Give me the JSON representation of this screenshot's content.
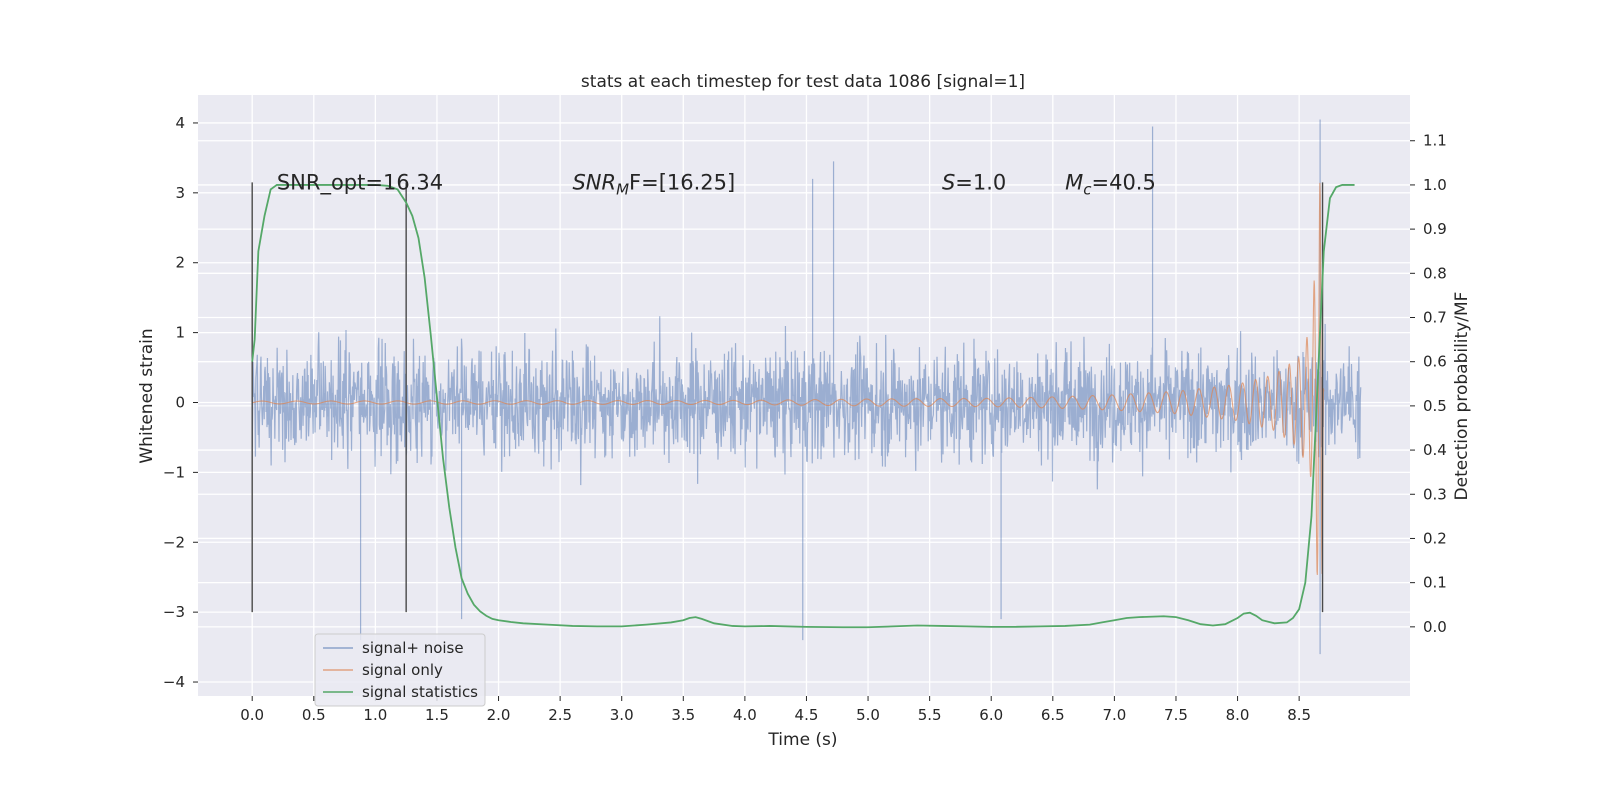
{
  "chart_data": {
    "type": "line",
    "title": "stats at each timestep for test data 1086 [signal=1]",
    "xlabel": "Time (s)",
    "ylabel": "Whitened strain",
    "y2label": "Detection probability/MF",
    "xlim": [
      -0.44,
      9.4
    ],
    "ylim": [
      -4.2,
      4.4
    ],
    "y2lim": [
      -0.1565,
      1.2035
    ],
    "grid": true,
    "x_ticks": [
      0.0,
      0.5,
      1.0,
      1.5,
      2.0,
      2.5,
      3.0,
      3.5,
      4.0,
      4.5,
      5.0,
      5.5,
      6.0,
      6.5,
      7.0,
      7.5,
      8.0,
      8.5
    ],
    "x_tick_labels": [
      "0.0",
      "0.5",
      "1.0",
      "1.5",
      "2.0",
      "2.5",
      "3.0",
      "3.5",
      "4.0",
      "4.5",
      "5.0",
      "5.5",
      "6.0",
      "6.5",
      "7.0",
      "7.5",
      "8.0",
      "8.5"
    ],
    "y_ticks": [
      4,
      3,
      2,
      1,
      0,
      -1,
      -2,
      -3,
      -4
    ],
    "y_tick_labels": [
      "4",
      "3",
      "2",
      "1",
      "0",
      "−1",
      "−2",
      "−3",
      "−4"
    ],
    "y2_ticks": [
      1.1,
      1.0,
      0.9,
      0.8,
      0.7,
      0.6,
      0.5,
      0.4,
      0.3,
      0.2,
      0.1,
      0.0
    ],
    "y2_tick_labels": [
      "1.1",
      "1.0",
      "0.9",
      "0.8",
      "0.7",
      "0.6",
      "0.5",
      "0.4",
      "0.3",
      "0.2",
      "0.1",
      "0.0"
    ],
    "legend_location": "bottom-left",
    "series": [
      {
        "name": "signal+ noise",
        "axis": "left",
        "color": "#4c72b0",
        "kind": "dense noise trace, roughly ±1.3 core with peaks to about ±3.5",
        "x_range": [
          0.0,
          9.0
        ],
        "peaks": [
          {
            "x": 0.88,
            "y": -3.4
          },
          {
            "x": 1.7,
            "y": -3.1
          },
          {
            "x": 4.55,
            "y": 3.2
          },
          {
            "x": 4.47,
            "y": -3.4
          },
          {
            "x": 4.72,
            "y": 3.45
          },
          {
            "x": 6.08,
            "y": -3.1
          },
          {
            "x": 7.31,
            "y": 3.95
          },
          {
            "x": 8.67,
            "y": 4.05
          },
          {
            "x": 8.67,
            "y": -3.6
          }
        ]
      },
      {
        "name": "signal only",
        "axis": "left",
        "color": "#dd8452",
        "kind": "chirp with growing amplitude",
        "x": [
          0.0,
          4.0,
          5.0,
          6.0,
          6.5,
          7.0,
          7.5,
          8.0,
          8.3,
          8.5,
          8.6,
          8.65,
          8.68,
          8.7
        ],
        "amplitude": [
          0.02,
          0.03,
          0.05,
          0.06,
          0.08,
          0.11,
          0.16,
          0.26,
          0.4,
          0.65,
          1.1,
          2.6,
          3.5,
          0.2
        ]
      },
      {
        "name": "signal statistics",
        "axis": "right",
        "color": "#55a868",
        "x": [
          0.0,
          0.02,
          0.05,
          0.1,
          0.15,
          0.2,
          0.3,
          0.5,
          0.7,
          0.9,
          1.0,
          1.1,
          1.18,
          1.25,
          1.3,
          1.35,
          1.4,
          1.45,
          1.5,
          1.55,
          1.6,
          1.65,
          1.7,
          1.75,
          1.8,
          1.85,
          1.9,
          1.95,
          2.0,
          2.1,
          2.2,
          2.4,
          2.6,
          2.8,
          3.0,
          3.2,
          3.4,
          3.5,
          3.55,
          3.6,
          3.65,
          3.75,
          3.9,
          4.0,
          4.2,
          4.5,
          4.8,
          5.0,
          5.2,
          5.4,
          5.6,
          5.8,
          6.0,
          6.2,
          6.4,
          6.6,
          6.8,
          6.9,
          7.0,
          7.1,
          7.2,
          7.4,
          7.5,
          7.6,
          7.7,
          7.8,
          7.9,
          8.0,
          8.05,
          8.1,
          8.15,
          8.2,
          8.3,
          8.4,
          8.45,
          8.5,
          8.55,
          8.6,
          8.65,
          8.7,
          8.75,
          8.8,
          8.85,
          8.9,
          8.95
        ],
        "values": [
          0.6,
          0.65,
          0.85,
          0.93,
          0.99,
          1.0,
          1.0,
          1.0,
          1.0,
          1.0,
          1.0,
          0.998,
          0.99,
          0.96,
          0.93,
          0.88,
          0.79,
          0.66,
          0.52,
          0.38,
          0.27,
          0.18,
          0.11,
          0.075,
          0.05,
          0.035,
          0.025,
          0.018,
          0.015,
          0.011,
          0.008,
          0.005,
          0.002,
          0.001,
          0.001,
          0.005,
          0.01,
          0.015,
          0.02,
          0.022,
          0.018,
          0.008,
          0.002,
          0.001,
          0.002,
          0.0,
          -0.001,
          -0.001,
          0.001,
          0.003,
          0.002,
          0.001,
          0.0,
          0.0,
          0.001,
          0.002,
          0.005,
          0.01,
          0.015,
          0.02,
          0.022,
          0.024,
          0.022,
          0.015,
          0.006,
          0.003,
          0.006,
          0.02,
          0.03,
          0.032,
          0.025,
          0.015,
          0.008,
          0.01,
          0.02,
          0.04,
          0.1,
          0.25,
          0.55,
          0.85,
          0.97,
          0.995,
          1.0,
          1.0,
          1.0
        ]
      }
    ],
    "vertical_lines": [
      0.0,
      1.25,
      8.69
    ],
    "annotations": [
      {
        "text": "SNR_opt=16.34",
        "x": 0.2,
        "y": 3.15
      },
      {
        "text": "SNR",
        "sub": "M",
        "rest": "F=[16.25]",
        "x": 2.6,
        "y": 3.15
      },
      {
        "text": "S",
        "rest": "=1.0",
        "x": 5.6,
        "y": 3.15
      },
      {
        "text": "M",
        "sub": "c",
        "rest": "=40.5",
        "x": 6.6,
        "y": 3.15
      }
    ]
  }
}
